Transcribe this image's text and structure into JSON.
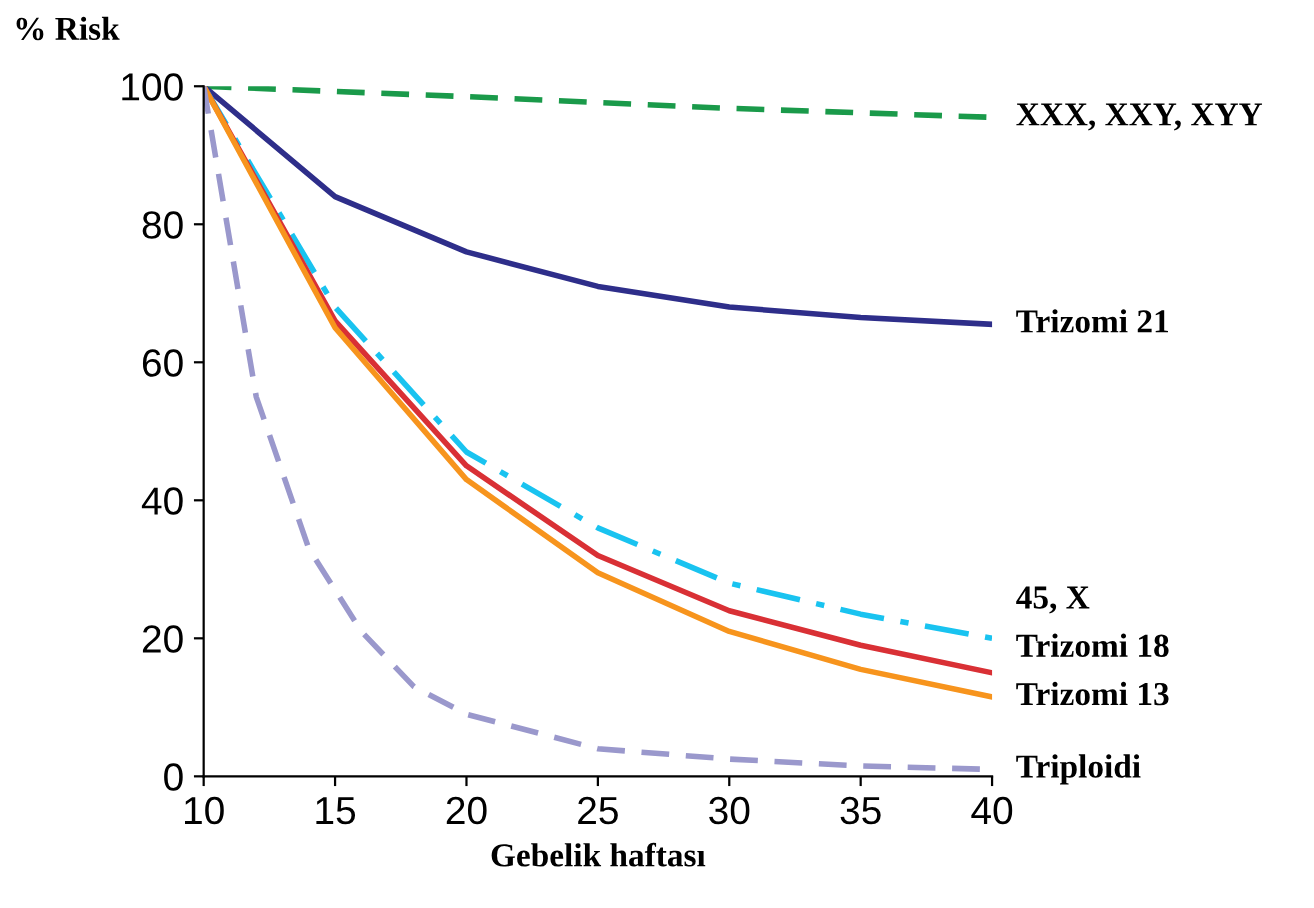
{
  "chart_data": {
    "type": "line",
    "ylabel": "% Risk",
    "xlabel": "Gebelik haftası",
    "xlim": [
      10,
      40
    ],
    "xticks": [
      10,
      15,
      20,
      25,
      30,
      35,
      40
    ],
    "ylim": [
      0,
      100
    ],
    "yticks": [
      0,
      20,
      40,
      60,
      80,
      100
    ],
    "grid": false,
    "legend": false,
    "marker": "none",
    "series": [
      {
        "name": "XXX, XXY, XYY",
        "color": "#1a9a4a",
        "line_style": "dashed",
        "x": [
          10,
          20,
          30,
          40
        ],
        "values": [
          100,
          98.5,
          96.8,
          95.5
        ]
      },
      {
        "name": "Trizomi 21",
        "color": "#2e2e8a",
        "line_style": "solid",
        "x": [
          10,
          15,
          20,
          25,
          30,
          35,
          40
        ],
        "values": [
          100,
          84,
          76,
          71,
          68,
          66.5,
          65.5
        ]
      },
      {
        "name": "45, X",
        "color": "#19c3f0",
        "line_style": "dashdot",
        "x": [
          10,
          15,
          20,
          25,
          30,
          35,
          40
        ],
        "values": [
          100,
          68,
          47,
          36,
          28,
          23.5,
          20
        ]
      },
      {
        "name": "Trizomi 18",
        "color": "#d93035",
        "line_style": "solid",
        "x": [
          10,
          15,
          20,
          25,
          30,
          35,
          40
        ],
        "values": [
          100,
          66,
          45,
          32,
          24,
          19,
          15
        ]
      },
      {
        "name": "Trizomi 13",
        "color": "#f7941d",
        "line_style": "solid",
        "x": [
          10,
          15,
          20,
          25,
          30,
          35,
          40
        ],
        "values": [
          100,
          65,
          43,
          29.5,
          21,
          15.5,
          11.5
        ]
      },
      {
        "name": "Triploidi",
        "color": "#9a98cc",
        "line_style": "dashed",
        "x": [
          10,
          12,
          14,
          16,
          18,
          20,
          25,
          30,
          35,
          40
        ],
        "values": [
          100,
          55,
          33,
          21,
          13,
          9,
          4,
          2.5,
          1.5,
          1
        ]
      }
    ]
  }
}
